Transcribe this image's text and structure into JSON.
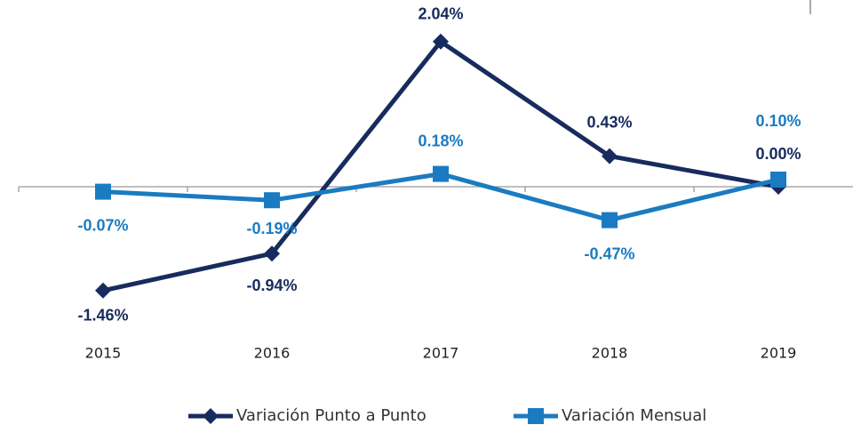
{
  "chart_data": {
    "type": "line",
    "categories": [
      "2015",
      "2016",
      "2017",
      "2018",
      "2019"
    ],
    "series": [
      {
        "name": "Variación Punto a Punto",
        "color": "#172b5e",
        "marker": "diamond",
        "values": [
          -1.46,
          -0.94,
          2.04,
          0.43,
          0.0
        ],
        "value_labels": [
          "-1.46%",
          "-0.94%",
          "2.04%",
          "0.43%",
          "0.00%"
        ]
      },
      {
        "name": "Variación Mensual",
        "color": "#1b7bc2",
        "marker": "square",
        "values": [
          -0.07,
          -0.19,
          0.18,
          -0.47,
          0.1
        ],
        "value_labels": [
          "-0.07%",
          "-0.19%",
          "0.18%",
          "-0.47%",
          "0.10%"
        ]
      }
    ],
    "ylim": [
      -2,
      2.5
    ],
    "legend": "bottom"
  }
}
